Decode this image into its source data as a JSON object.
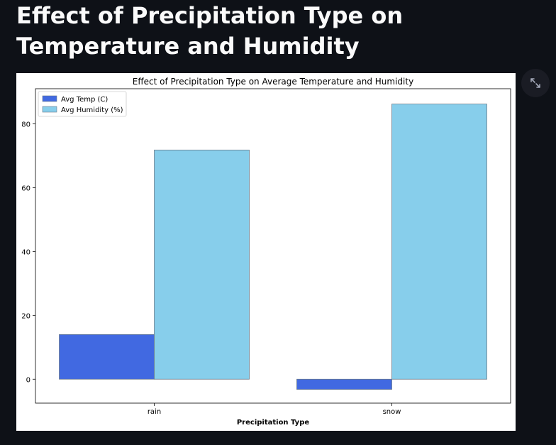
{
  "page": {
    "title": "Effect of Precipitation Type on Temperature and Humidity"
  },
  "toolbar": {
    "expand_icon": "expand-icon"
  },
  "colors": {
    "background": "#0e1117",
    "temp": "#4169e1",
    "humidity": "#87ceeb"
  },
  "chart_data": {
    "type": "bar",
    "title": "Effect of Precipitation Type on Average Temperature and Humidity",
    "xlabel": "Precipitation Type",
    "ylabel": "",
    "categories": [
      "rain",
      "snow"
    ],
    "series": [
      {
        "name": "Avg Temp (C)",
        "values": [
          14.0,
          -3.2
        ],
        "color": "#4169e1"
      },
      {
        "name": "Avg Humidity (%)",
        "values": [
          71.8,
          86.2
        ],
        "color": "#87ceeb"
      }
    ],
    "yticks": [
      0,
      20,
      40,
      60,
      80
    ],
    "ylim": [
      -7.5,
      91
    ],
    "grid": false,
    "legend_position": "top-left"
  }
}
